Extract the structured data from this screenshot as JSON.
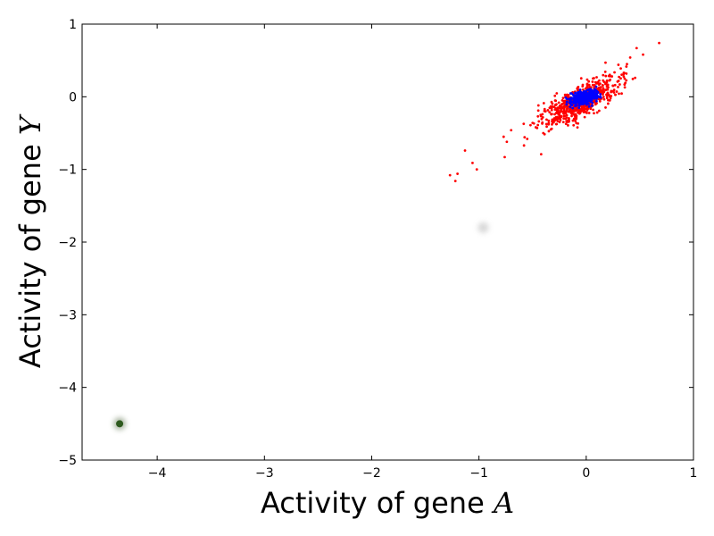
{
  "chart_data": {
    "type": "scatter",
    "title": "",
    "xlabel": "Activity of gene ",
    "xlabel_var": "A",
    "ylabel": "Activity of gene ",
    "ylabel_var": "Y",
    "xlim": [
      -4.7,
      1.0
    ],
    "ylim": [
      -5.0,
      1.0
    ],
    "xticks": [
      -4,
      -3,
      -2,
      -1,
      0,
      1
    ],
    "xtick_labels": [
      "−4",
      "−3",
      "−2",
      "−1",
      "0",
      "1"
    ],
    "yticks": [
      1,
      0,
      -1,
      -2,
      -3,
      -4,
      -5
    ],
    "ytick_labels": [
      "1",
      "0",
      "−1",
      "−2",
      "−3",
      "−4",
      "−5"
    ],
    "grid": false,
    "series": [
      {
        "color": "#ff0000",
        "marker": "dot",
        "distribution": {
          "type": "elongated-cluster",
          "n": 650,
          "center": [
            -0.05,
            -0.07
          ],
          "spread_along": 0.22,
          "spread_across": 0.08,
          "orientation_slope": 0.9
        },
        "outliers": [
          [
            -1.27,
            -1.08
          ],
          [
            -1.22,
            -1.16
          ],
          [
            -1.2,
            -1.06
          ],
          [
            -1.13,
            -0.74
          ],
          [
            -1.06,
            -0.91
          ],
          [
            -1.02,
            -1.0
          ],
          [
            -0.77,
            -0.55
          ],
          [
            -0.76,
            -0.83
          ],
          [
            -0.74,
            -0.62
          ],
          [
            -0.7,
            -0.46
          ],
          [
            -0.58,
            -0.67
          ],
          [
            -0.55,
            -0.58
          ],
          [
            -0.5,
            -0.36
          ],
          [
            -0.47,
            -0.42
          ],
          [
            -0.45,
            -0.27
          ],
          [
            -0.42,
            -0.79
          ],
          [
            -0.4,
            -0.5
          ],
          [
            -0.35,
            -0.33
          ],
          [
            -0.33,
            -0.45
          ],
          [
            0.3,
            0.44
          ],
          [
            0.35,
            0.33
          ],
          [
            0.38,
            0.45
          ],
          [
            0.41,
            0.54
          ],
          [
            0.47,
            0.67
          ],
          [
            0.53,
            0.58
          ],
          [
            0.68,
            0.74
          ],
          [
            0.18,
            0.47
          ],
          [
            0.24,
            0.28
          ],
          [
            0.2,
            0.1
          ],
          [
            0.22,
            -0.05
          ]
        ]
      },
      {
        "color": "#0000ff",
        "marker": "dot",
        "distribution": {
          "type": "elongated-cluster",
          "n": 400,
          "center": [
            -0.02,
            -0.01
          ],
          "spread_along": 0.07,
          "spread_across": 0.04,
          "orientation_slope": 0.6
        },
        "outliers": []
      }
    ],
    "markers": [
      {
        "x": -0.96,
        "y": -1.8,
        "color": "#c8c8c8",
        "style": "faint-blur"
      },
      {
        "x": -4.35,
        "y": -4.5,
        "color": "#2e5a1e",
        "style": "dark-blur"
      }
    ]
  }
}
